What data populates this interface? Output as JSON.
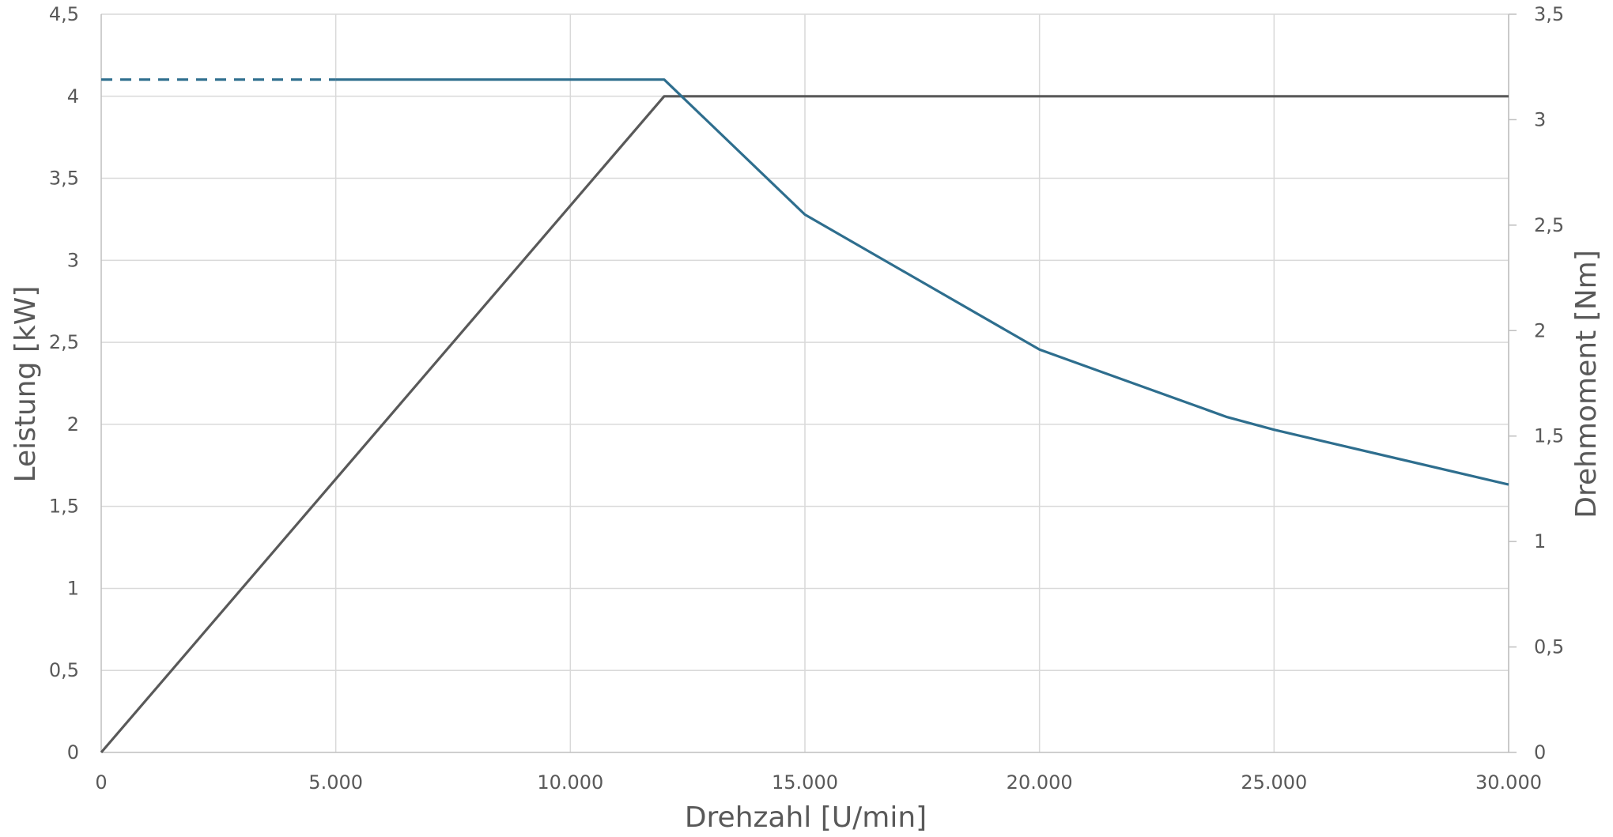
{
  "chart_data": {
    "type": "line",
    "title": "",
    "xlabel": "Drehzahl [U/min]",
    "ylabel_left": "Leistung [kW]",
    "ylabel_right": "Drehmoment [Nm]",
    "xlim": [
      0,
      30000
    ],
    "ylim_left": [
      0,
      4.5
    ],
    "ylim_right": [
      0,
      3.5
    ],
    "x_ticks": [
      0,
      5000,
      10000,
      15000,
      20000,
      25000,
      30000
    ],
    "x_tick_labels": [
      "0",
      "5.000",
      "10.000",
      "15.000",
      "20.000",
      "25.000",
      "30.000"
    ],
    "y_left_ticks": [
      0,
      0.5,
      1,
      1.5,
      2,
      2.5,
      3,
      3.5,
      4,
      4.5
    ],
    "y_left_tick_labels": [
      "0",
      "0,5",
      "1",
      "1,5",
      "2",
      "2,5",
      "3",
      "3,5",
      "4",
      "4,5"
    ],
    "y_right_ticks": [
      0,
      0.5,
      1,
      1.5,
      2,
      2.5,
      3,
      3.5
    ],
    "y_right_tick_labels": [
      "0",
      "0,5",
      "1",
      "1,5",
      "2",
      "2,5",
      "3",
      "3,5"
    ],
    "grid": true,
    "legend": "none",
    "series": [
      {
        "axis": "left",
        "color": "#595959",
        "style": "solid",
        "points": [
          [
            0,
            0
          ],
          [
            12000,
            4.0
          ],
          [
            30000,
            4.0
          ]
        ]
      },
      {
        "axis": "right",
        "color": "#2e6e8e",
        "style": "dashed",
        "points": [
          [
            0,
            3.19
          ],
          [
            5000,
            3.19
          ]
        ]
      },
      {
        "axis": "right",
        "color": "#2e6e8e",
        "style": "solid",
        "points": [
          [
            5000,
            3.19
          ],
          [
            12000,
            3.19
          ],
          [
            15000,
            2.55
          ],
          [
            20000,
            1.91
          ],
          [
            24000,
            1.59
          ],
          [
            25000,
            1.53
          ],
          [
            30000,
            1.27
          ]
        ]
      }
    ]
  }
}
